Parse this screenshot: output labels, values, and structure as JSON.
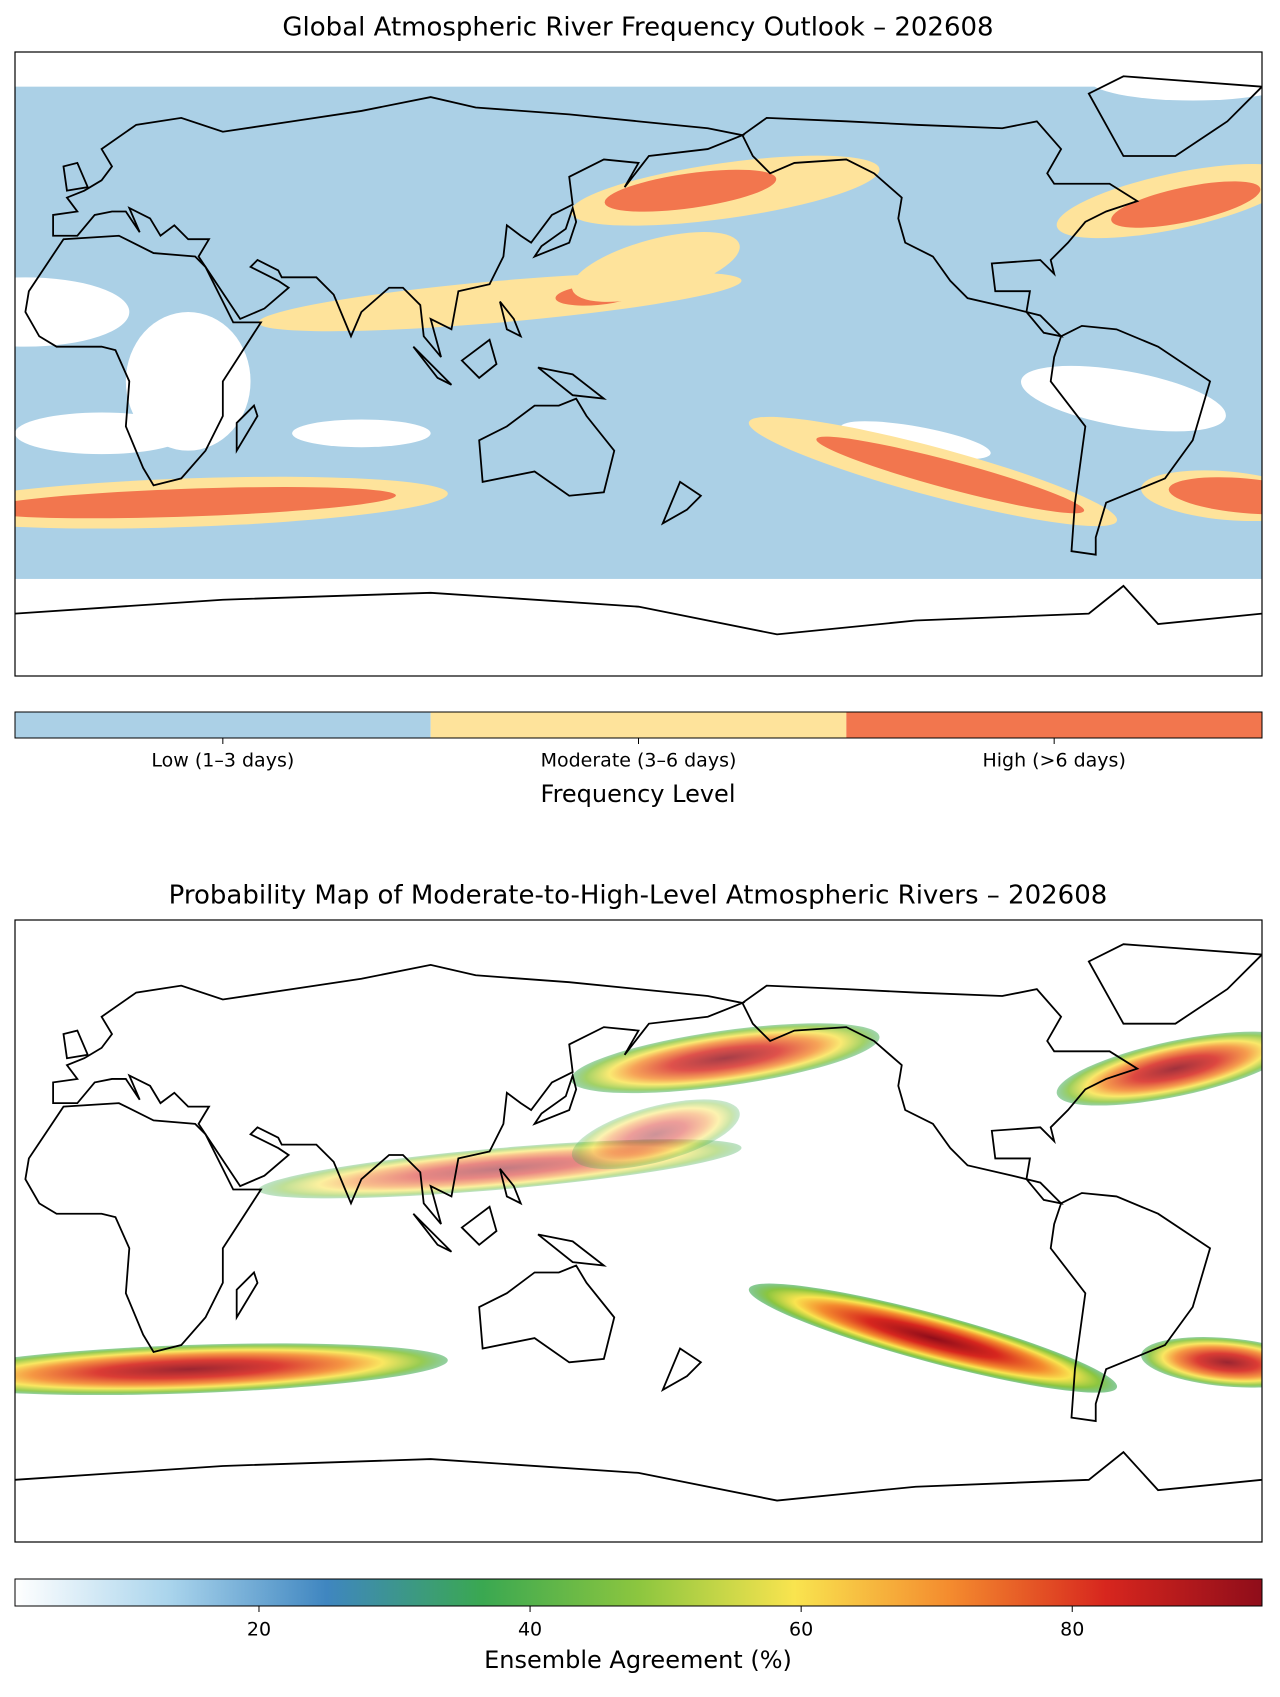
{
  "chart_data": [
    {
      "type": "categorical-map",
      "title": "Global Atmospheric River Frequency Outlook – 202608",
      "categories": [
        "Low (1–3 days)",
        "Moderate (3–6 days)",
        "High (>6 days)"
      ],
      "colors": [
        "#abd0e6",
        "#fee39b",
        "#f2764e"
      ],
      "colorbar_label": "Frequency Level"
    },
    {
      "type": "continuous-map",
      "title": "Probability Map of Moderate-to-High-Level Atmospheric Rivers – 202608",
      "colormap": [
        "#ffffff",
        "#a9d4ec",
        "#3f86c0",
        "#3aa851",
        "#8cc63f",
        "#f9e44f",
        "#f48b2e",
        "#d7261e",
        "#8f0d1a"
      ],
      "clim": [
        2,
        94
      ],
      "ticks": [
        20,
        40,
        60,
        80
      ],
      "colorbar_label": "Ensemble Agreement (%)"
    }
  ]
}
